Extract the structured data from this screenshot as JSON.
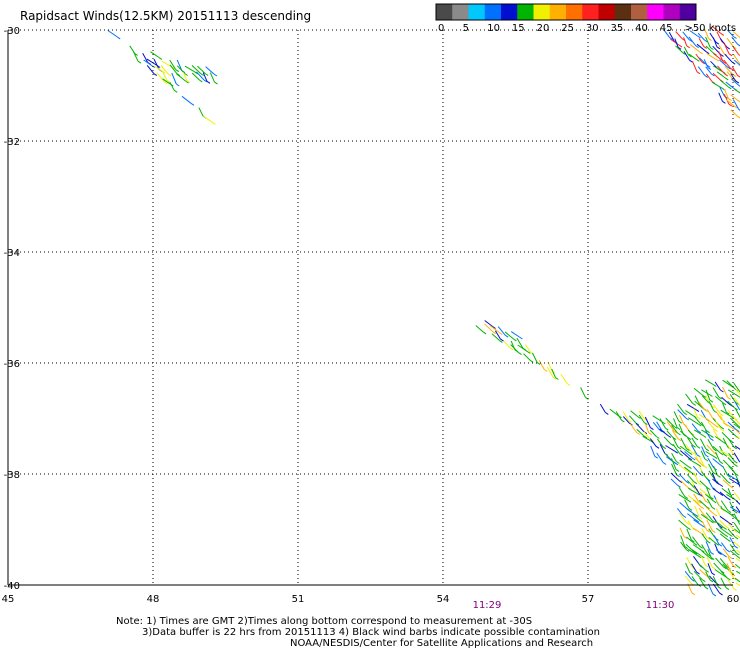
{
  "title": "Rapidsact Winds(12.5KM) 20151113 descending",
  "colorbar": {
    "colors": [
      "#4a4a4a",
      "#8a8a8a",
      "#00c8ff",
      "#0070ff",
      "#0010d0",
      "#00b400",
      "#f0f000",
      "#ffb000",
      "#ff7000",
      "#ff2020",
      "#c00000",
      "#5a3010",
      "#b06040",
      "#ff00ff",
      "#b000c0",
      "#5000a0"
    ],
    "tick_labels": [
      "0",
      "5",
      "10",
      "15",
      "20",
      "25",
      "30",
      "35",
      "40",
      "45",
      ">50 knots"
    ]
  },
  "axes": {
    "lon_labels": [
      "45",
      "48",
      "51",
      "54",
      "57",
      "60"
    ],
    "lat_labels": [
      "-30",
      "-32",
      "-34",
      "-36",
      "-38",
      "-40"
    ]
  },
  "times": [
    "11:29",
    "11:30"
  ],
  "notes": [
    "Note: 1) Times are GMT 2)Times along bottom correspond to measurement at -30S",
    "3)Data buffer is 22 hrs from 20151113 4) Black wind barbs indicate possible contamination",
    "NOAA/NESDIS/Center for Satellite Applications and Research"
  ],
  "swaths": [
    {
      "name": "swath-nw",
      "points": [
        [
          46.9,
          -29.9
        ],
        [
          47.6,
          -30.3
        ],
        [
          48.0,
          -30.4
        ],
        [
          48.6,
          -30.5
        ],
        [
          49.0,
          -30.6
        ],
        [
          49.4,
          -30.8
        ],
        [
          48.3,
          -30.9
        ],
        [
          48.7,
          -31.2
        ],
        [
          49.1,
          -31.5
        ],
        [
          49.3,
          -31.8
        ]
      ],
      "colors": [
        "#00b400",
        "#0010d0",
        "#0070ff",
        "#f0f000",
        "#00b400"
      ]
    },
    {
      "name": "swath-ne",
      "points": [
        [
          58.4,
          -29.9
        ],
        [
          60.2,
          -29.9
        ],
        [
          60.2,
          -31.7
        ],
        [
          59.2,
          -30.7
        ]
      ],
      "colors": [
        "#0010d0",
        "#00b400",
        "#0070ff",
        "#ff2020",
        "#ffb000"
      ]
    },
    {
      "name": "swath-se",
      "points": [
        [
          54.4,
          -35.2
        ],
        [
          55.0,
          -35.5
        ],
        [
          56.0,
          -36.0
        ],
        [
          57.0,
          -36.6
        ],
        [
          58.0,
          -37.2
        ],
        [
          58.6,
          -37.8
        ],
        [
          58.8,
          -38.4
        ],
        [
          58.9,
          -39.2
        ],
        [
          59.0,
          -40.3
        ],
        [
          60.2,
          -40.3
        ],
        [
          60.2,
          -36.3
        ],
        [
          59.4,
          -36.3
        ],
        [
          58.5,
          -36.9
        ],
        [
          57.5,
          -36.8
        ],
        [
          56.5,
          -36.2
        ],
        [
          55.4,
          -35.4
        ],
        [
          54.8,
          -35.2
        ]
      ],
      "colors": [
        "#00b400",
        "#0010d0",
        "#0070ff",
        "#f0f000",
        "#ffb000",
        "#00b400",
        "#00b400"
      ]
    }
  ]
}
